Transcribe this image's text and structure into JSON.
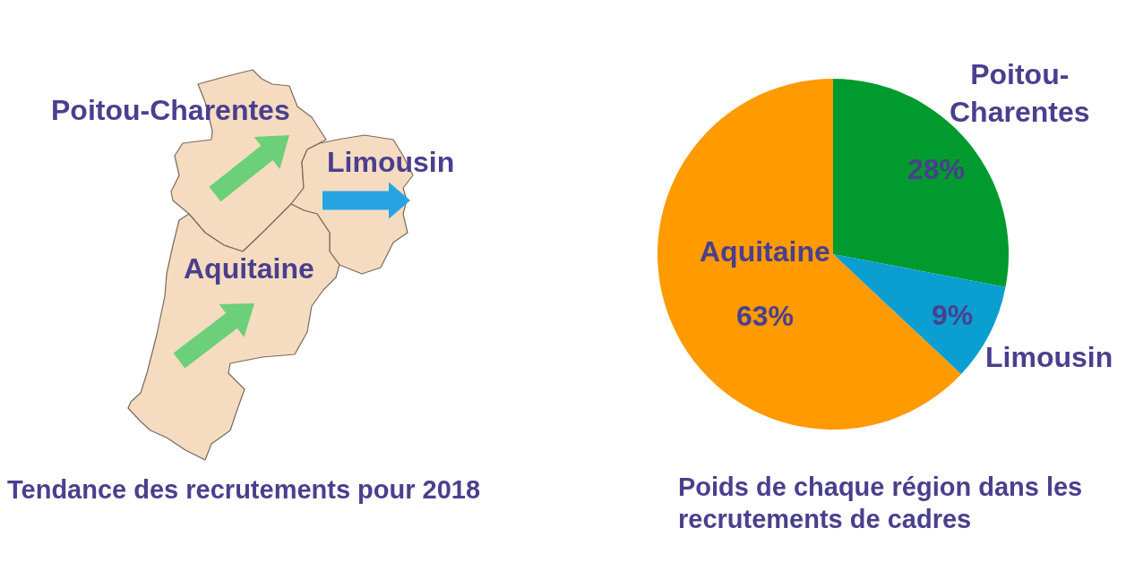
{
  "chart_data": [
    {
      "type": "other",
      "title": "Tendance des recrutements pour 2018",
      "annotations": [
        "Poitou-Charentes",
        "Limousin",
        "Aquitaine"
      ]
    },
    {
      "type": "pie",
      "title": "Poids de chaque région dans les recrutements de cadres",
      "categories": [
        "Poitou-Charentes",
        "Limousin",
        "Aquitaine"
      ],
      "values": [
        28,
        9,
        63
      ],
      "colors": [
        "#009a2e",
        "#0a9fd0",
        "#ff9a00"
      ],
      "value_labels": [
        "28%",
        "9%",
        "63%"
      ]
    }
  ]
}
